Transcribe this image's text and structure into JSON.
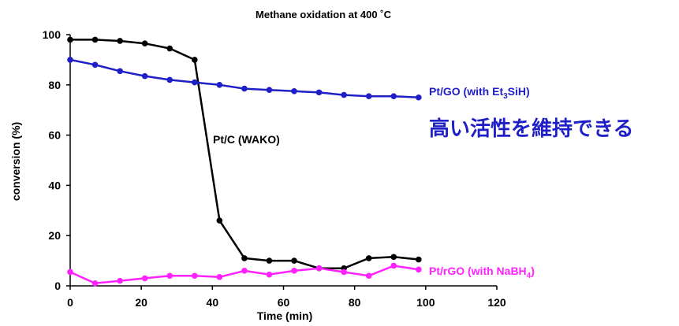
{
  "chart_data": {
    "type": "line",
    "title": "Methane oxidation at 400 ˚C",
    "xlabel": "Time (min)",
    "ylabel": "conversion (%)",
    "xlim": [
      0,
      120
    ],
    "ylim": [
      0,
      100
    ],
    "xticks": [
      0,
      20,
      40,
      60,
      80,
      100,
      120
    ],
    "yticks": [
      0,
      20,
      40,
      60,
      80,
      100
    ],
    "grid": false,
    "series": [
      {
        "id": "ptc",
        "name": "Pt/C (WAKO)",
        "color": "#000000",
        "x": [
          0,
          7,
          14,
          21,
          28,
          35,
          42,
          49,
          56,
          63,
          70,
          77,
          84,
          91,
          98
        ],
        "y": [
          98,
          98,
          97.5,
          96.5,
          94.5,
          90,
          26,
          11,
          10,
          10,
          7,
          7,
          11,
          11.5,
          10.5
        ]
      },
      {
        "id": "ptgo",
        "name": "Pt/GO (with Et3SiH)",
        "color": "#1f1fc8",
        "x": [
          0,
          7,
          14,
          21,
          28,
          35,
          42,
          49,
          56,
          63,
          70,
          77,
          84,
          91,
          98
        ],
        "y": [
          90,
          88,
          85.5,
          83.5,
          82,
          81,
          80,
          78.5,
          78,
          77.5,
          77,
          76,
          75.5,
          75.5,
          75
        ]
      },
      {
        "id": "ptrgo",
        "name": "Pt/rGO (with NaBH4)",
        "color": "#ff22ff",
        "x": [
          0,
          7,
          14,
          21,
          28,
          35,
          42,
          49,
          56,
          63,
          70,
          77,
          84,
          91,
          98
        ],
        "y": [
          5.5,
          1,
          2,
          3,
          4,
          4,
          3.5,
          6,
          4.5,
          6,
          7,
          5.5,
          4,
          8,
          6.5
        ]
      }
    ],
    "annotations": {
      "ptc_label": "Pt/C (WAKO)",
      "ptgo_label_main": "Pt/GO (with Et",
      "ptgo_label_sub": "3",
      "ptgo_label_tail": "SiH)",
      "ptrgo_label_main": "Pt/rGO (with NaBH",
      "ptrgo_label_sub": "4",
      "ptrgo_label_tail": ")",
      "note": "高い活性を維持できる",
      "note_color": "#1f1fc8"
    }
  }
}
